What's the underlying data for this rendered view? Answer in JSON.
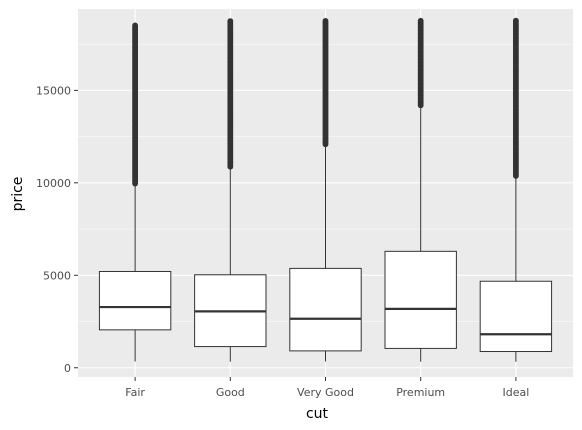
{
  "chart_data": {
    "type": "boxplot",
    "xlabel": "cut",
    "ylabel": "price",
    "ylim": [
      -500,
      19400
    ],
    "yticks": [
      0,
      5000,
      10000,
      15000
    ],
    "y_tick_labels": [
      "0",
      "5000",
      "10000",
      "15000"
    ],
    "grid": true,
    "background_color": "#ebebeb",
    "grid_color": "#ffffff",
    "box_fill": "#ffffff",
    "line_color": "#333333",
    "categories": [
      "Fair",
      "Good",
      "Very Good",
      "Premium",
      "Ideal"
    ],
    "boxes": [
      {
        "category": "Fair",
        "whisker_low": 337,
        "q1": 2050,
        "median": 3282,
        "q3": 5206,
        "whisker_high": 9940,
        "outlier_range": [
          9960,
          18574
        ]
      },
      {
        "category": "Good",
        "whisker_low": 327,
        "q1": 1145,
        "median": 3050,
        "q3": 5028,
        "whisker_high": 10850,
        "outlier_range": [
          10870,
          18788
        ]
      },
      {
        "category": "Very Good",
        "whisker_low": 336,
        "q1": 912,
        "median": 2648,
        "q3": 5373,
        "whisker_high": 12060,
        "outlier_range": [
          12080,
          18818
        ]
      },
      {
        "category": "Premium",
        "whisker_low": 326,
        "q1": 1046,
        "median": 3185,
        "q3": 6296,
        "whisker_high": 14170,
        "outlier_range": [
          14190,
          18823
        ]
      },
      {
        "category": "Ideal",
        "whisker_low": 326,
        "q1": 878,
        "median": 1810,
        "q3": 4678,
        "whisker_high": 10350,
        "outlier_range": [
          10370,
          18806
        ]
      }
    ]
  }
}
